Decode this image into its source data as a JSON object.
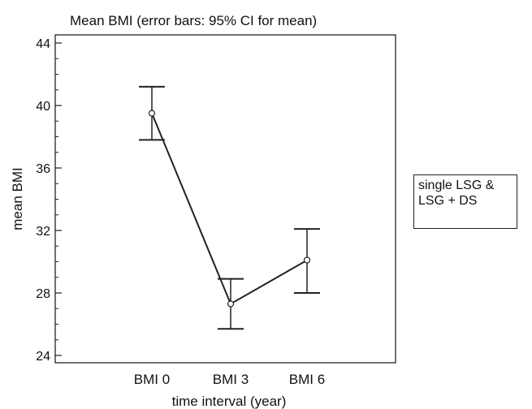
{
  "chart_data": {
    "type": "line",
    "title": "Mean BMI  (error bars: 95% CI for mean)",
    "xlabel": "time interval  (year)",
    "ylabel": "mean BMI",
    "categories": [
      "BMI 0",
      "BMI 3",
      "BMI 6"
    ],
    "ylim": [
      24,
      44
    ],
    "yticks": [
      24,
      28,
      32,
      36,
      40,
      44
    ],
    "ytick_labels": [
      "24",
      "28",
      "32",
      "36",
      "40",
      "44"
    ],
    "series": [
      {
        "name": "single LSG & LSG + DS",
        "values": [
          39.5,
          27.3,
          30.1
        ],
        "ci_lower": [
          37.8,
          25.7,
          28.0
        ],
        "ci_upper": [
          41.2,
          28.9,
          32.1
        ]
      }
    ],
    "grid": false,
    "legend_position": "right",
    "legend_lines": [
      "single LSG &",
      "LSG + DS"
    ]
  }
}
